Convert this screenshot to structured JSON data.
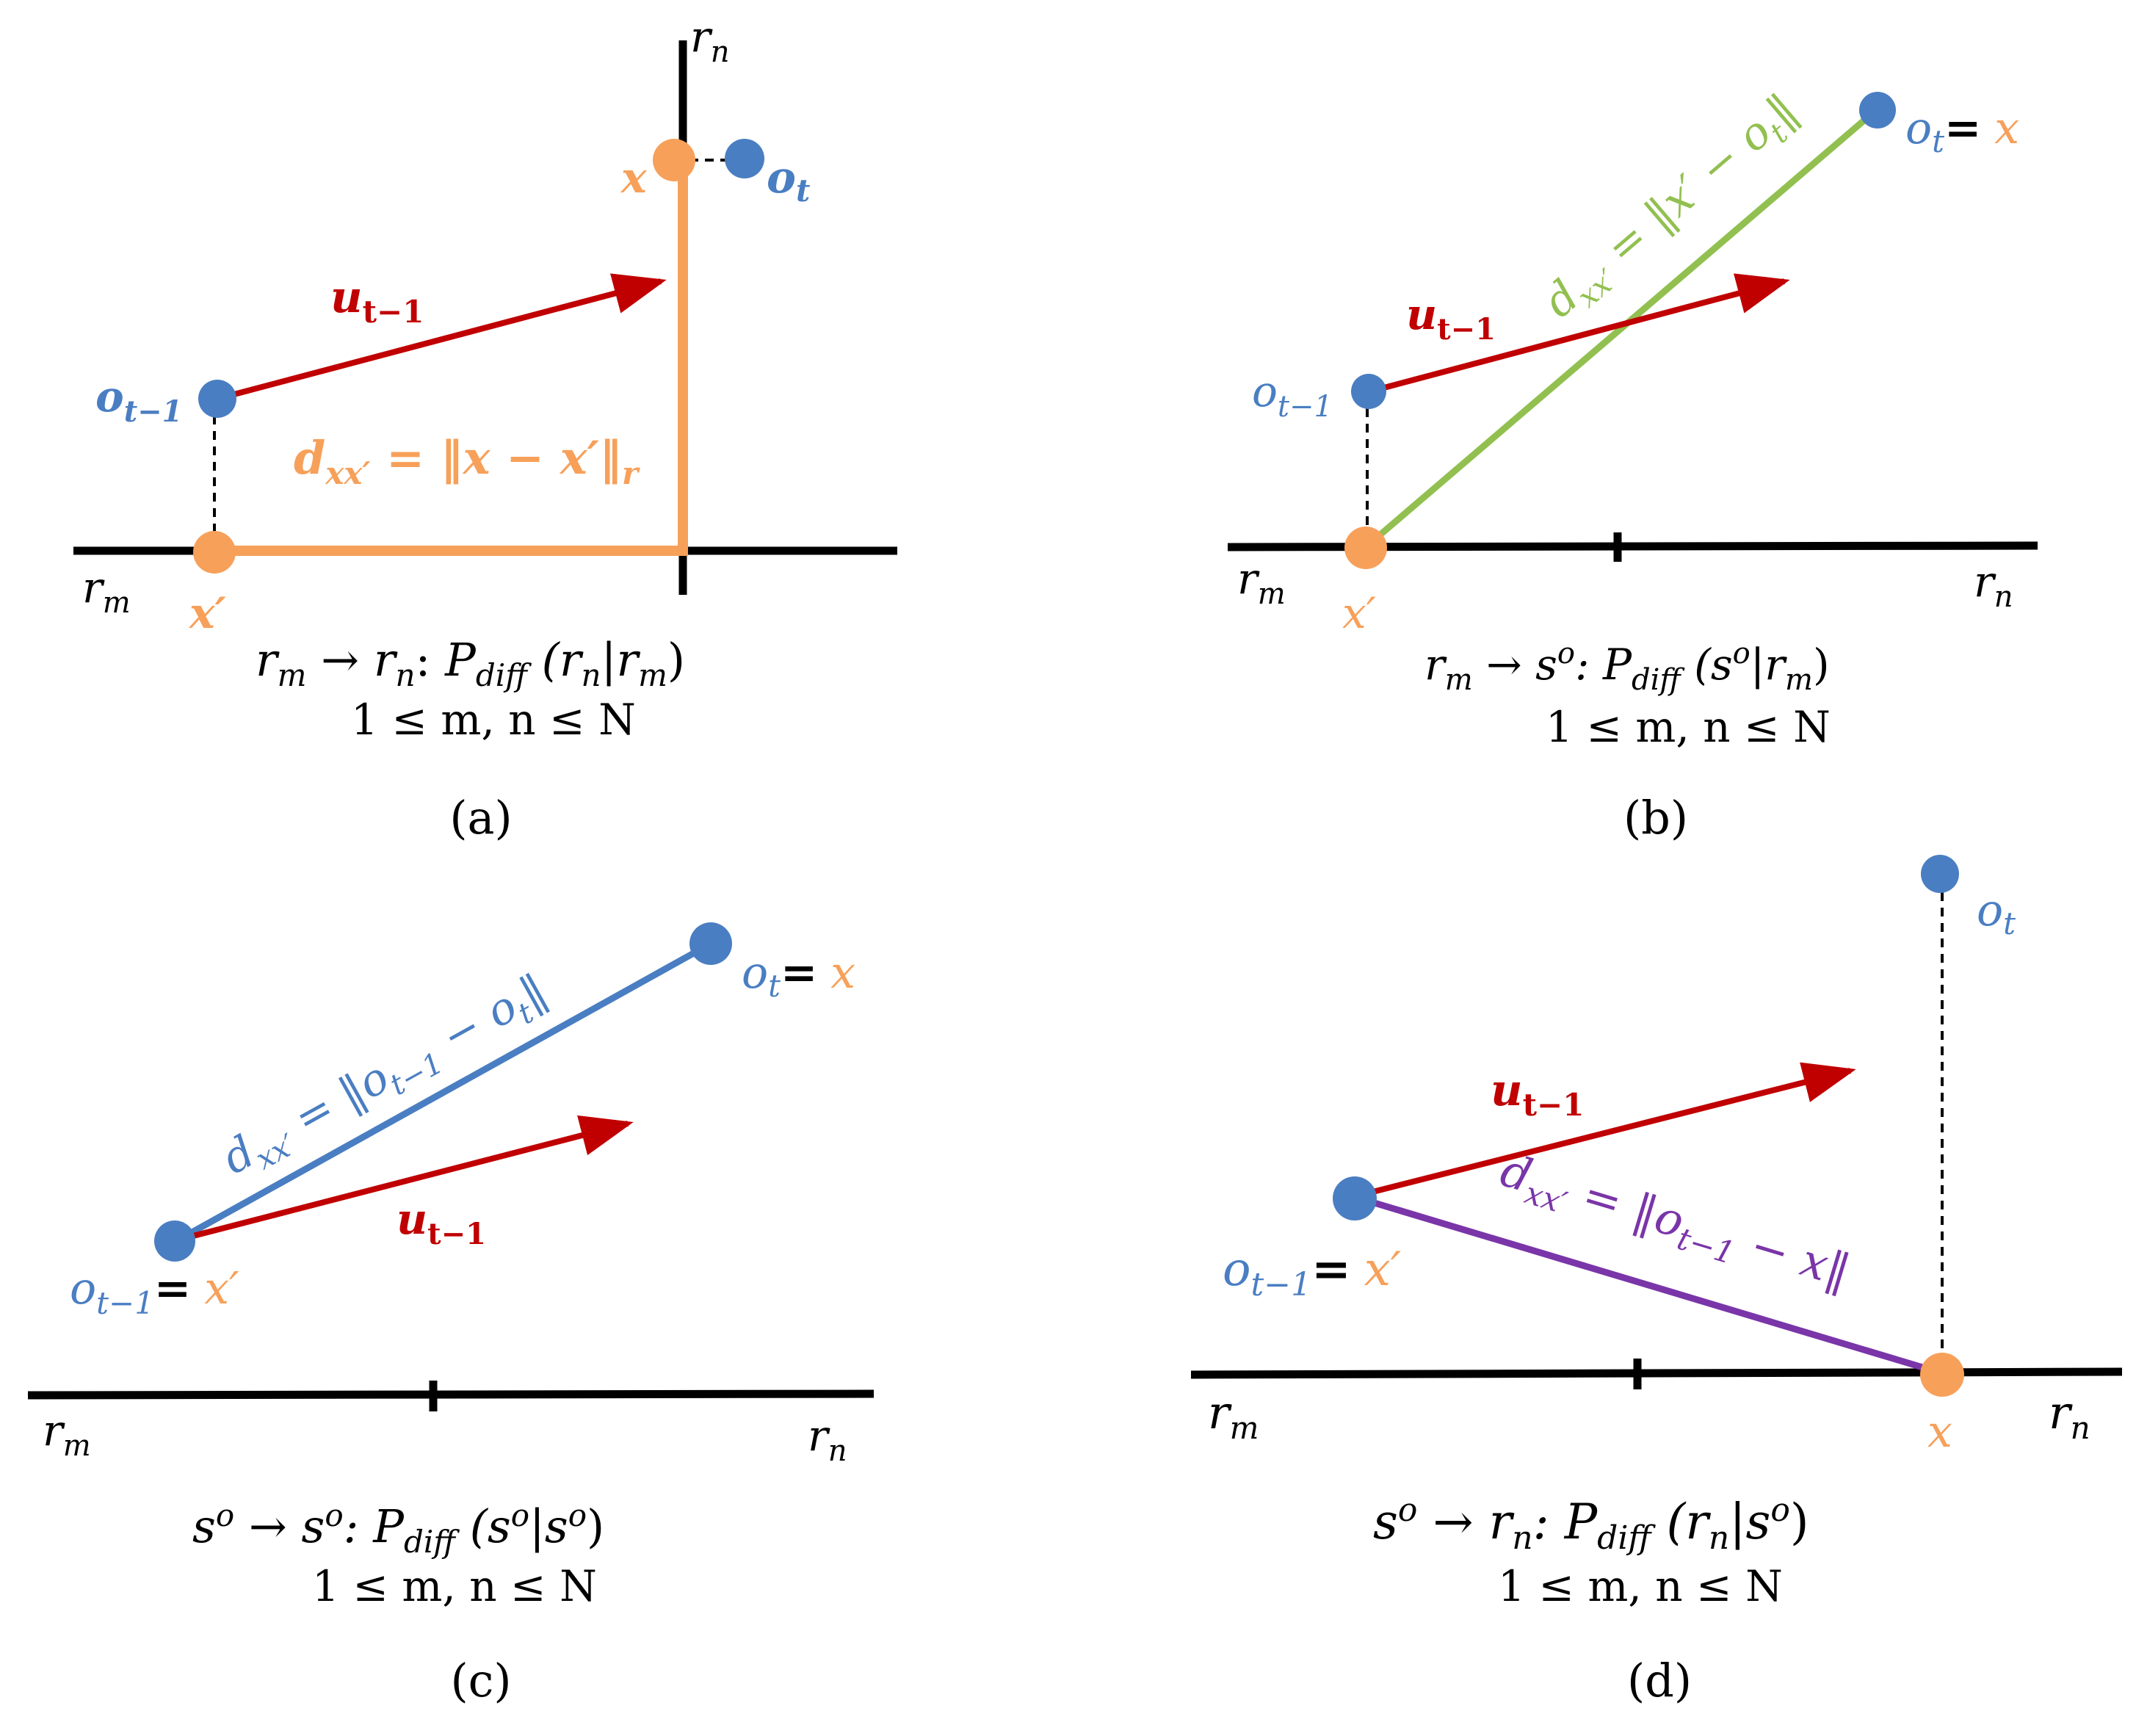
{
  "colors": {
    "axis": "#000000",
    "blue": "#4a7ec2",
    "orange": "#f7a05a",
    "red": "#c00000",
    "green": "#92c050",
    "purple": "#7a35a8"
  },
  "symbols": {
    "r": "r",
    "m": "m",
    "n": "n",
    "o": "o",
    "t": "t",
    "t_minus_1": "t−1",
    "x": "x",
    "x_prime": "x′",
    "u": "u",
    "d": "d",
    "xx_prime": "xx′",
    "equals": "=",
    "s": "s",
    "o_sup": "o"
  },
  "panels": {
    "a": {
      "label": "(a)",
      "dist_formula": "d",
      "dist_sub": "xx′",
      "dist_rhs": " = ‖x − x′‖",
      "dist_rhs_sub": "r",
      "transition_lhs": "r",
      "transition_lhs_sub": "m",
      "transition_arrow": " → ",
      "transition_rhs": "r",
      "transition_rhs_sub": "n",
      "transition_colon": ": ",
      "prob": "P",
      "prob_sub": "diff",
      "prob_arg": " (r",
      "prob_arg_sub1": "n",
      "prob_bar": "|r",
      "prob_arg_sub2": "m",
      "prob_close": ")",
      "constraint": "1 ≤ m, n ≤ N"
    },
    "b": {
      "label": "(b)",
      "dist_formula": "d",
      "dist_sub": "xx′",
      "dist_rhs": " = ‖x′ − o",
      "dist_rhs_sub": "t",
      "dist_close": "‖",
      "transition_text": "r",
      "transition_sub": "m",
      "transition_arrow": " → s",
      "transition_sup": "o",
      "transition_colon": ": P",
      "prob_sub": "diff",
      "prob_arg": " (s",
      "prob_arg_sup": "o",
      "prob_bar": "|r",
      "prob_arg_sub2": "m",
      "prob_close": ")",
      "constraint": "1 ≤ m, n ≤ N"
    },
    "c": {
      "label": "(c)",
      "dist_formula": "d",
      "dist_sub": "xx′",
      "dist_rhs": " = ‖o",
      "dist_rhs_sub": "t−1",
      "dist_mid": " − o",
      "dist_mid_sub": "t",
      "dist_close": "‖",
      "transition_text": "s",
      "transition_sup": "o",
      "transition_arrow": " → s",
      "transition_sup2": "o",
      "transition_colon": ": P",
      "prob_sub": "diff",
      "prob_arg": " (s",
      "prob_arg_sup": "o",
      "prob_bar": "|s",
      "prob_arg_sup2": "o",
      "prob_close": ")",
      "constraint": "1 ≤ m, n ≤ N"
    },
    "d": {
      "label": "(d)",
      "dist_formula": "d",
      "dist_sub": "xx′",
      "dist_rhs": " = ‖o",
      "dist_rhs_sub": "t−1",
      "dist_mid": " − x‖",
      "transition_text": "s",
      "transition_sup": "o",
      "transition_arrow": " → r",
      "transition_sub": "n",
      "transition_colon": ": P",
      "prob_sub": "diff",
      "prob_arg": " (r",
      "prob_arg_sub": "n",
      "prob_bar": "|s",
      "prob_arg_sup": "o",
      "prob_close": ")",
      "constraint": "1 ≤ m, n ≤ N"
    }
  }
}
